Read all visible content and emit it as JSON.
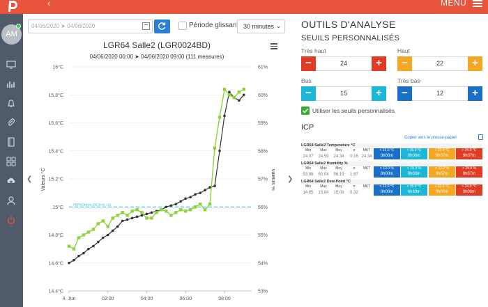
{
  "header": {
    "menu_label": "MENU",
    "colors": {
      "bar": "#e8533b"
    }
  },
  "sidebar": {
    "avatar_initials": "AM",
    "icons": [
      "monitor-icon",
      "bar-chart-icon",
      "bell-icon",
      "paperclip-icon",
      "book-icon",
      "grid-icon",
      "cloud-upload-icon",
      "user-icon",
      "power-icon"
    ]
  },
  "toolbar": {
    "date_range": "04/06/2020 ➤ 04/06/2020",
    "sliding_period_label": "Période glissante",
    "duration_value": "30 minutes"
  },
  "chart": {
    "title": "LGR64 Salle2 (LGR0024BD)",
    "subtitle": "04/06/2020 00:00 ➤ 04/06/2020 09:00 (111 measures)",
    "threshold_label": "PERSONNALISÉ BAS : 15"
  },
  "chart_data": {
    "type": "line",
    "x_ticks": [
      "4. Jun",
      "02:00",
      "04:00",
      "06:00",
      "08:00"
    ],
    "y_left": {
      "label": "Valeurs °C",
      "ticks": [
        "14.4°C",
        "14.6°C",
        "14.8°C",
        "15°C",
        "15.2°C",
        "15.4°C",
        "15.6°C",
        "15.8°C",
        "16°C"
      ],
      "ylim": [
        14.4,
        16.0
      ]
    },
    "y_right": {
      "label": "Valeurs %",
      "ticks": [
        "53%",
        "54%",
        "55%",
        "56%",
        "57%",
        "58%",
        "59%",
        "60%",
        "61%"
      ],
      "ylim": [
        53,
        61
      ]
    },
    "series": [
      {
        "axis": "left",
        "color": "#333333",
        "x": [
          0,
          0.25,
          0.5,
          0.75,
          1.0,
          1.25,
          1.5,
          1.75,
          2.0,
          2.25,
          2.5,
          2.75,
          3.0,
          3.25,
          3.5,
          3.75,
          4.0,
          4.25,
          4.5,
          4.75,
          5.0,
          5.25,
          5.5,
          5.75,
          6.0,
          6.25,
          6.5,
          6.75,
          7.0,
          7.25,
          7.5,
          7.75,
          8.0,
          8.25,
          8.5,
          8.75,
          9.0
        ],
        "y": [
          14.6,
          14.62,
          14.65,
          14.67,
          14.7,
          14.72,
          14.75,
          14.78,
          14.8,
          14.83,
          14.86,
          14.9,
          14.91,
          14.92,
          14.93,
          14.94,
          14.95,
          14.96,
          14.97,
          14.98,
          15.0,
          15.01,
          15.02,
          15.04,
          15.06,
          15.07,
          15.09,
          15.1,
          15.12,
          15.14,
          15.15,
          15.4,
          15.65,
          15.82,
          15.78,
          15.76,
          15.8
        ]
      },
      {
        "axis": "right",
        "color": "#8bd43a",
        "x": [
          0,
          0.25,
          0.5,
          0.75,
          1.0,
          1.25,
          1.5,
          1.75,
          2.0,
          2.25,
          2.5,
          2.75,
          3.0,
          3.25,
          3.5,
          3.75,
          4.0,
          4.25,
          4.5,
          4.75,
          5.0,
          5.25,
          5.5,
          5.75,
          6.0,
          6.25,
          6.5,
          6.75,
          7.0,
          7.25,
          7.5,
          7.75,
          8.0,
          8.25,
          8.5,
          8.75,
          9.0
        ],
        "y": [
          54.6,
          54.5,
          54.9,
          55.0,
          55.1,
          55.2,
          55.4,
          55.5,
          55.3,
          55.6,
          55.7,
          55.8,
          55.7,
          55.85,
          55.9,
          55.8,
          55.6,
          55.6,
          55.8,
          55.9,
          55.85,
          55.7,
          55.8,
          55.9,
          55.85,
          55.9,
          56.0,
          56.1,
          55.9,
          56.1,
          58.1,
          59.2,
          60.2,
          60.0,
          59.9,
          60.1,
          60.2
        ]
      }
    ],
    "threshold": {
      "axis": "left",
      "value": 15.0
    },
    "grid": true
  },
  "tools": {
    "title": "OUTILS D'ANALYSE",
    "thresholds_title": "SEUILS PERSONNALISÉS",
    "very_high_label": "Très haut",
    "very_high_value": "24",
    "high_label": "Haut",
    "high_value": "22",
    "low_label": "Bas",
    "low_value": "15",
    "very_low_label": "Très bas",
    "very_low_value": "12",
    "use_thresholds_label": "Utiliser les seuils personnalisés",
    "icp_title": "ICP",
    "copy_label": "Copier vers le presse-papier",
    "colors": {
      "very_high": "#e03b24",
      "high": "#f5a623",
      "low": "#1ab7d6",
      "very_low": "#1a6fc9"
    }
  },
  "icp": {
    "headers": [
      "Min",
      "Max",
      "Moy",
      "σ",
      "MKT"
    ],
    "blocks": [
      {
        "name": "LGR64 Salle2 Temperature °C",
        "values": [
          "24.07",
          "24.59",
          "24.34",
          "0.16",
          "24.34"
        ],
        "zones": [
          "< 12.0 °C",
          "< 15.0 °C",
          "> 22.0 °C",
          "> 24.0 °C"
        ],
        "zone_values": [
          "0h00m",
          "0h00m",
          "9h07m",
          "9h07m"
        ]
      },
      {
        "name": "LGR64 Salle2 Humidity %",
        "values": [
          "53.98",
          "60.04",
          "56.15",
          "1.67",
          ""
        ],
        "zones": [
          "< 12.0 %",
          "< 15.0 %",
          "> 22.0 %",
          "> 24.0 %"
        ],
        "zone_values": [
          "0h00m",
          "0h00m",
          "9h07m",
          "9h07m"
        ]
      },
      {
        "name": "LGR64 Salle2 Dew Point °C",
        "values": [
          "14.65",
          "15.84",
          "15.03",
          "0.32",
          ""
        ],
        "zones": [
          "< 12.0 °C",
          "< 15.0 °C",
          "> 22.0 °C",
          "> 24.0 °C"
        ],
        "zone_values": [
          "0h00m",
          "6h30m",
          "0h00m",
          "0h00m"
        ]
      }
    ]
  }
}
